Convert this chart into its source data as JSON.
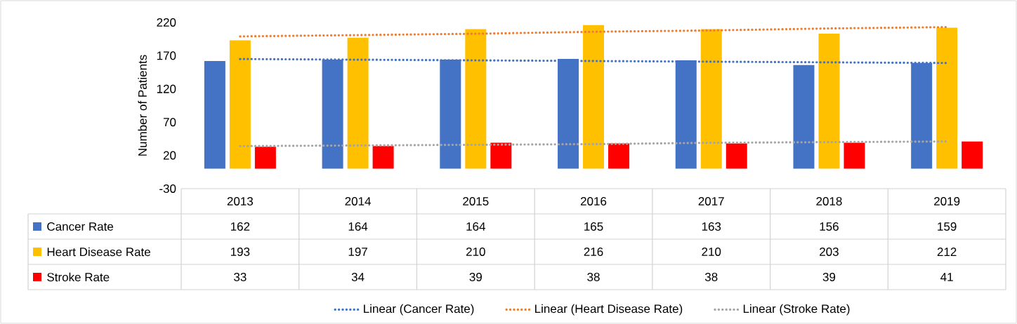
{
  "chart_data": {
    "type": "bar",
    "ylabel": "Number of Patients",
    "categories": [
      "2013",
      "2014",
      "2015",
      "2016",
      "2017",
      "2018",
      "2019"
    ],
    "series": [
      {
        "name": "Cancer Rate",
        "color": "#4472c4",
        "data_labels": true,
        "values": [
          162,
          164,
          164,
          165,
          163,
          156,
          159
        ]
      },
      {
        "name": "Heart Disease Rate",
        "color": "#ffc000",
        "data_labels": true,
        "values": [
          193,
          197,
          210,
          216,
          210,
          203,
          212
        ]
      },
      {
        "name": "Stroke Rate",
        "color": "#ff0000",
        "data_labels": true,
        "values": [
          33,
          34,
          39,
          38,
          38,
          39,
          41
        ]
      },
      {
        "name": "Linear (Cancer Rate)",
        "type": "line",
        "color": "#4472c4",
        "line_style": "dotted",
        "values": [
          165,
          164,
          163,
          162,
          161,
          160,
          159
        ]
      },
      {
        "name": "Linear (Heart Disease Rate)",
        "type": "line",
        "color": "#ed7d31",
        "line_style": "dotted",
        "values": [
          199,
          201,
          203,
          206,
          208,
          211,
          213
        ]
      },
      {
        "name": "Linear (Stroke Rate)",
        "type": "line",
        "color": "#a5a5a5",
        "line_style": "dotted",
        "values": [
          34,
          35,
          36,
          37,
          39,
          40,
          41
        ]
      }
    ],
    "ylim": [
      -30,
      220
    ],
    "yticks": [
      -30,
      20,
      70,
      120,
      170,
      220
    ],
    "legend": "bottom",
    "marker": "none"
  }
}
